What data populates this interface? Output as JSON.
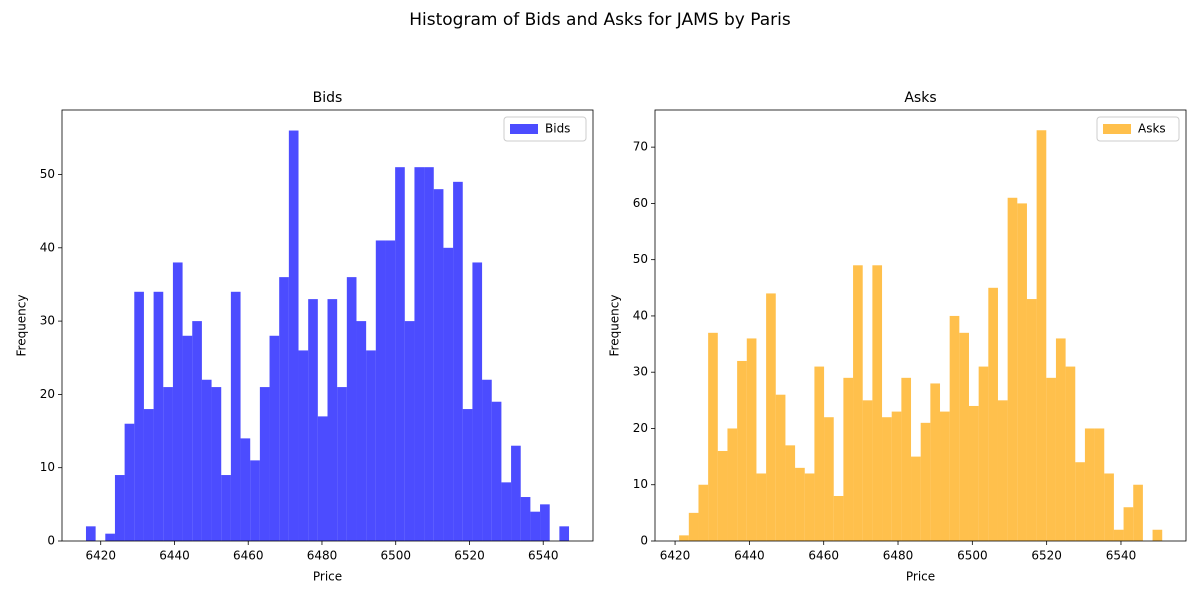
{
  "title": "Histogram of Bids and Asks for JAMS by Paris",
  "chart_data": [
    {
      "type": "histogram",
      "title": "Bids",
      "xlabel": "Price",
      "ylabel": "Frequency",
      "series": [
        {
          "name": "Bids",
          "color": "#0000ff",
          "alpha": 0.7,
          "bins": [
            6416.0,
            6418.62,
            6421.24,
            6423.86,
            6426.48,
            6429.1,
            6431.72,
            6434.34,
            6436.96,
            6439.58,
            6442.2,
            6444.82,
            6447.44,
            6450.06,
            6452.68,
            6455.3,
            6457.92,
            6460.54,
            6463.16,
            6465.78,
            6468.4,
            6471.02,
            6473.64,
            6476.26,
            6478.88,
            6481.5,
            6484.12,
            6486.74,
            6489.36,
            6491.98,
            6494.6,
            6497.22,
            6499.84,
            6502.46,
            6505.08,
            6507.7,
            6510.32,
            6512.94,
            6515.56,
            6518.18,
            6520.8,
            6523.42,
            6526.04,
            6528.66,
            6531.28,
            6533.9,
            6536.52,
            6539.14,
            6541.76,
            6544.38,
            6547.0
          ],
          "values": [
            2,
            0,
            1,
            9,
            16,
            34,
            18,
            34,
            21,
            38,
            28,
            30,
            22,
            21,
            9,
            34,
            14,
            11,
            21,
            28,
            36,
            56,
            26,
            33,
            17,
            33,
            21,
            36,
            30,
            26,
            41,
            41,
            51,
            30,
            51,
            51,
            48,
            40,
            49,
            18,
            38,
            22,
            19,
            8,
            13,
            6,
            4,
            5,
            0,
            2
          ]
        }
      ],
      "xlim": [
        6409.5,
        6553.5
      ],
      "xticks": [
        6420,
        6440,
        6460,
        6480,
        6500,
        6520,
        6540
      ],
      "ylim": [
        0,
        58.8
      ],
      "yticks": [
        0,
        10,
        20,
        30,
        40,
        50
      ],
      "legend": "upper right"
    },
    {
      "type": "histogram",
      "title": "Asks",
      "xlabel": "Price",
      "ylabel": "Frequency",
      "series": [
        {
          "name": "Asks",
          "color": "#ffa500",
          "alpha": 0.7,
          "bins": [
            6421.1,
            6423.7,
            6426.3,
            6428.9,
            6431.5,
            6434.1,
            6436.7,
            6439.3,
            6441.9,
            6444.5,
            6447.1,
            6449.7,
            6452.3,
            6454.9,
            6457.5,
            6460.1,
            6462.7,
            6465.3,
            6467.9,
            6470.5,
            6473.1,
            6475.7,
            6478.3,
            6480.9,
            6483.5,
            6486.1,
            6488.7,
            6491.3,
            6493.9,
            6496.5,
            6499.1,
            6501.7,
            6504.3,
            6506.9,
            6509.5,
            6512.1,
            6514.7,
            6517.3,
            6519.9,
            6522.5,
            6525.1,
            6527.7,
            6530.3,
            6532.9,
            6535.5,
            6538.1,
            6540.7,
            6543.3,
            6545.9,
            6548.5,
            6551.1
          ],
          "values": [
            1,
            5,
            10,
            37,
            16,
            20,
            32,
            36,
            12,
            44,
            26,
            17,
            13,
            12,
            31,
            22,
            8,
            29,
            49,
            25,
            49,
            22,
            23,
            29,
            15,
            21,
            28,
            23,
            40,
            37,
            24,
            31,
            45,
            25,
            61,
            60,
            43,
            73,
            29,
            36,
            31,
            14,
            20,
            20,
            12,
            2,
            6,
            10,
            0,
            2
          ]
        }
      ],
      "xlim": [
        6414.6,
        6557.5
      ],
      "xticks": [
        6420,
        6440,
        6460,
        6480,
        6500,
        6520,
        6540
      ],
      "ylim": [
        0,
        76.6
      ],
      "yticks": [
        0,
        10,
        20,
        30,
        40,
        50,
        60,
        70
      ],
      "legend": "upper right"
    }
  ]
}
